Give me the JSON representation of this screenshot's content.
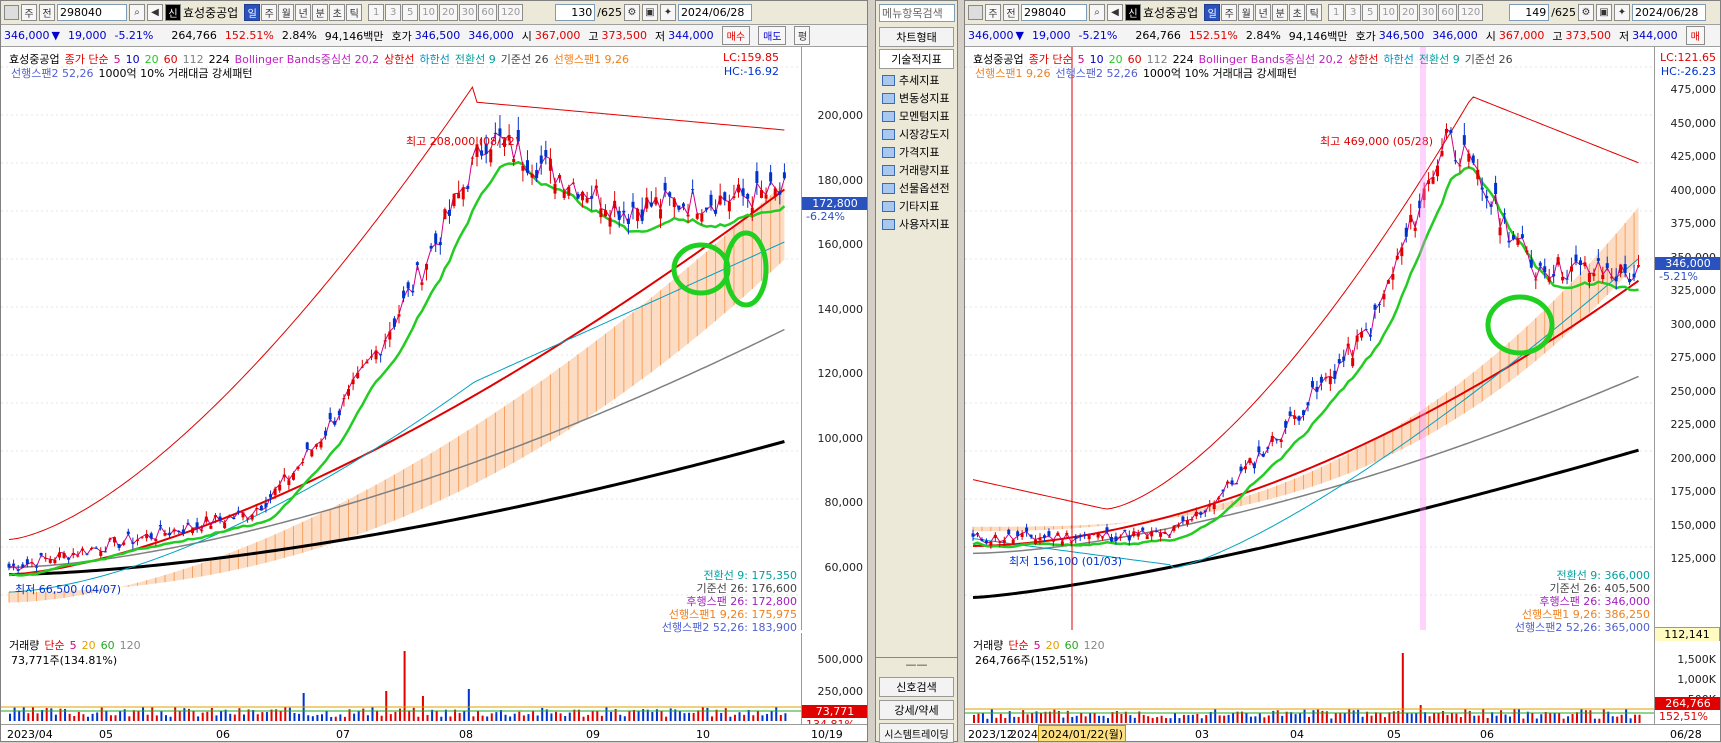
{
  "left": {
    "toolbar": {
      "period": "주",
      "prev": "전",
      "code": "298040",
      "name": "효성중공업",
      "tabs": [
        "일",
        "주",
        "월",
        "년",
        "분",
        "초",
        "틱"
      ],
      "active_tab": "일",
      "nums": [
        "1",
        "3",
        "5",
        "10",
        "20",
        "30",
        "60",
        "120"
      ],
      "count": "130",
      "total": "/625",
      "date": "2024/06/28"
    },
    "quote": {
      "price": "346,000",
      "dir": "▼",
      "change": "19,000",
      "pct": "-5.21%",
      "volume": "264,766",
      "vol_ratio": "152.51%",
      "turnover_pct": "2.84%",
      "amount": "94,146백만",
      "hoga_label": "호가",
      "hoga": "346,500",
      "hoga2": "346,000",
      "open_label": "시",
      "open": "367,000",
      "high_label": "고",
      "high": "373,500",
      "low_label": "저",
      "low": "344,000",
      "buy": "매수",
      "sell": "매도",
      "eval": "평"
    },
    "legend1": [
      "효성중공업",
      "종가 단순",
      "5",
      "10",
      "20",
      "60",
      "112",
      "224",
      "Bollinger Bands중심선 20,2",
      "상한선",
      "하한선",
      "전환선 9",
      "기준선 26",
      "선행스팬1 9,26"
    ],
    "legend2": [
      "선행스팬2 52,26",
      "1000억 10% 거래대금 강세패턴"
    ],
    "lc": "LC:159.85",
    "hc": "HC:-16.92",
    "high_label": "최고 208,000 (08/22)",
    "low_label": "최저 66,500 (04/07)",
    "yticks": [
      "200,000",
      "180,000",
      "160,000",
      "140,000",
      "120,000",
      "100,000",
      "80,000",
      "60,000"
    ],
    "yvals": [
      200000,
      180000,
      160000,
      140000,
      120000,
      100000,
      80000,
      60000
    ],
    "price_box": "172,800",
    "price_pct": "-6.24%",
    "ichimoku": [
      "전환선 9: 175,350",
      "기준선 26: 176,600",
      "후행스팬 26: 172,800",
      "선행스팬1 9,26: 175,975",
      "선행스팬2 52,26: 183,900"
    ],
    "vol_legend": [
      "거래량",
      "단순",
      "5",
      "20",
      "60",
      "120"
    ],
    "vol_info": "73,771주(134.81%)",
    "vol_ticks": [
      "500,000",
      "250,000"
    ],
    "vol_box": "73,771",
    "vol_pct": "134.81%",
    "xlabels": [
      "2023/04",
      "05",
      "06",
      "07",
      "08",
      "09",
      "10",
      "10/19"
    ]
  },
  "menu": {
    "search": "메뉴항목검색",
    "chart_type": "차트형태",
    "indicator": "기술적지표",
    "items": [
      "추세지표",
      "변동성지표",
      "모멘텀지표",
      "시장강도지",
      "가격지표",
      "거래량지표",
      "선물옵션전",
      "기타지표",
      "사용자지표"
    ],
    "signal": "신호검색",
    "strength": "강세/약세",
    "system": "시스템트레이딩"
  },
  "right": {
    "toolbar": {
      "period": "주",
      "prev": "전",
      "code": "298040",
      "name": "효성중공업",
      "tabs": [
        "일",
        "주",
        "월",
        "년",
        "분",
        "초",
        "틱"
      ],
      "active_tab": "일",
      "nums": [
        "1",
        "3",
        "5",
        "10",
        "20",
        "30",
        "60",
        "120"
      ],
      "count": "149",
      "total": "/625",
      "date": "2024/06/28"
    },
    "quote": {
      "price": "346,000",
      "dir": "▼",
      "change": "19,000",
      "pct": "-5.21%",
      "volume": "264,766",
      "vol_ratio": "152.51%",
      "turnover_pct": "2.84%",
      "amount": "94,146백만",
      "hoga_label": "호가",
      "hoga": "346,500",
      "hoga2": "346,000",
      "open_label": "시",
      "open": "367,000",
      "high_label": "고",
      "high": "373,500",
      "low_label": "저",
      "low": "344,000",
      "buy": "매"
    },
    "legend1": [
      "효성중공업",
      "종가 단순",
      "5",
      "10",
      "20",
      "60",
      "112",
      "224",
      "Bollinger Bands중심선 20,2",
      "상한선",
      "하한선",
      "전환선 9",
      "기준선 26"
    ],
    "legend2": [
      "선행스팬1 9,26",
      "선행스팬2 52,26",
      "1000억 10% 거래대금 강세패턴"
    ],
    "lc": "LC:121.65",
    "hc": "HC:-26.23",
    "high_label": "최고 469,000 (05/28)",
    "low_label": "최저 156,100 (01/03)",
    "yticks": [
      "475,000",
      "450,000",
      "425,000",
      "400,000",
      "375,000",
      "350,000",
      "325,000",
      "300,000",
      "275,000",
      "250,000",
      "225,000",
      "200,000",
      "175,000",
      "150,000",
      "125,000"
    ],
    "yvals": [
      475000,
      450000,
      425000,
      400000,
      375000,
      350000,
      325000,
      300000,
      275000,
      250000,
      225000,
      200000,
      175000,
      150000,
      125000
    ],
    "price_box": "346,000",
    "price_pct": "-5.21%",
    "ichimoku": [
      "전환선 9: 366,000",
      "기준선 26: 405,500",
      "후행스팬 26: 346,000",
      "선행스팬1 9,26: 386,250",
      "선행스팬2 52,26: 365,000"
    ],
    "ichi_box": "112,141",
    "vol_legend": [
      "거래량",
      "단순",
      "5",
      "20",
      "60",
      "120"
    ],
    "vol_info": "264,766주(152,51%)",
    "vol_ticks": [
      "1,500K",
      "1,000K",
      "500K"
    ],
    "vol_box": "264,766",
    "vol_pct": "152,51%",
    "xlabels": [
      "2023/12",
      "2024",
      "03",
      "04",
      "05",
      "06",
      "06/28"
    ],
    "cursor_date": "2024/01/22(월)"
  },
  "colors": {
    "up": "#e00000",
    "down": "#0033cc",
    "ma5": "#d0008a",
    "ma20": "#22cc22",
    "ma60": "#e00000",
    "ma120": "#808080",
    "ma224": "#000000",
    "cloud": "#f5a060",
    "span2": "#5070e0",
    "circle": "#20d020"
  }
}
